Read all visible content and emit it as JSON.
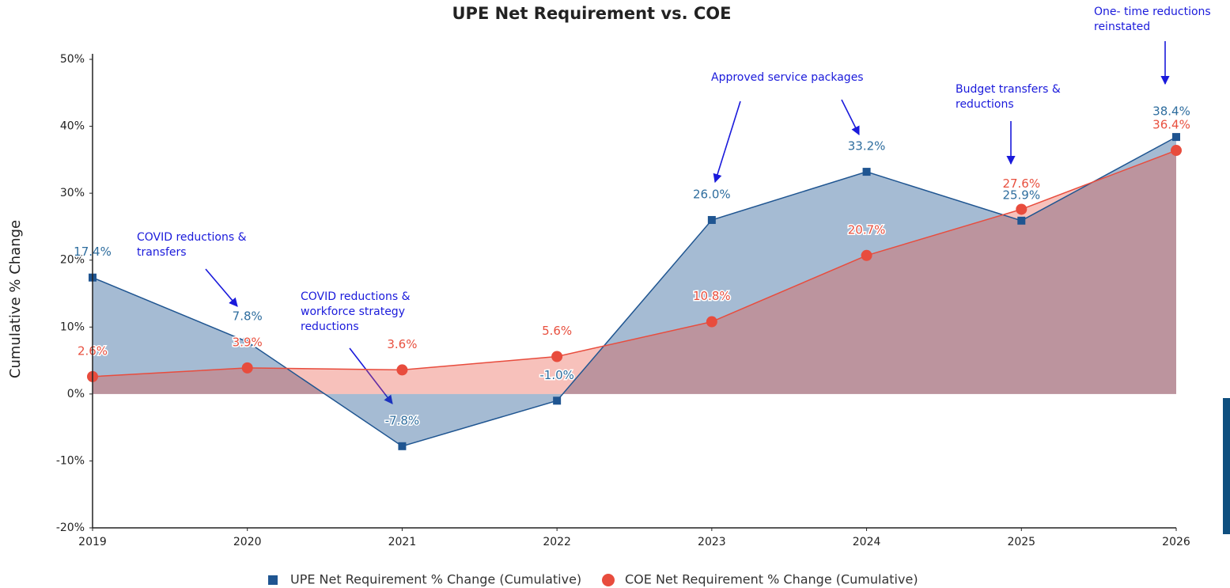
{
  "chart_data": {
    "type": "area",
    "title": "UPE Net Requirement vs. COE",
    "y_label": "Cumulative % Change",
    "x": [
      2019,
      2020,
      2021,
      2022,
      2023,
      2024,
      2025,
      2026
    ],
    "xlim": [
      2019,
      2026
    ],
    "xticks": [
      2019,
      2020,
      2021,
      2022,
      2023,
      2024,
      2025,
      2026
    ],
    "ylim": [
      -20,
      50
    ],
    "yticks": [
      {
        "value": -20,
        "label": "-20%"
      },
      {
        "value": -10,
        "label": "-10%"
      },
      {
        "value": 0,
        "label": "0%"
      },
      {
        "value": 10,
        "label": "10%"
      },
      {
        "value": 20,
        "label": "20%"
      },
      {
        "value": 30,
        "label": "30%"
      },
      {
        "value": 40,
        "label": "40%"
      },
      {
        "value": 50,
        "label": "50%"
      }
    ],
    "grid": false,
    "legend": "bottom",
    "series": [
      {
        "name": "UPE Net Requirement % Change (Cumulative)",
        "color": "#1f5591",
        "label_color": "#2e6d9e",
        "marker": "square",
        "values": [
          17.4,
          7.8,
          -7.8,
          -1.0,
          26.0,
          33.2,
          25.9,
          38.4
        ],
        "value_labels": [
          "17.4%",
          "7.8%",
          "-7.8%",
          "-1.0%",
          "26.0%",
          "33.2%",
          "25.9%",
          "38.4%"
        ]
      },
      {
        "name": "COE Net Requirement % Change (Cumulative)",
        "color": "#e84c3d",
        "label_color": "#e8503f",
        "marker": "circle",
        "values": [
          2.6,
          3.9,
          3.6,
          5.6,
          10.8,
          20.7,
          27.6,
          36.4
        ],
        "value_labels": [
          "2.6%",
          "3.9%",
          "3.6%",
          "5.6%",
          "10.8%",
          "20.7%",
          "27.6%",
          "36.4%"
        ]
      }
    ],
    "annotations": [
      {
        "lines": [
          "COVID reductions &",
          "transfers"
        ]
      },
      {
        "lines": [
          "COVID reductions  &",
          "workforce strategy",
          "reductions"
        ]
      },
      {
        "lines": [
          "Approved service packages"
        ]
      },
      {
        "lines": [
          "Budget transfers &",
          "reductions"
        ]
      },
      {
        "lines": [
          "One- time reductions",
          "reinstated"
        ]
      }
    ]
  }
}
